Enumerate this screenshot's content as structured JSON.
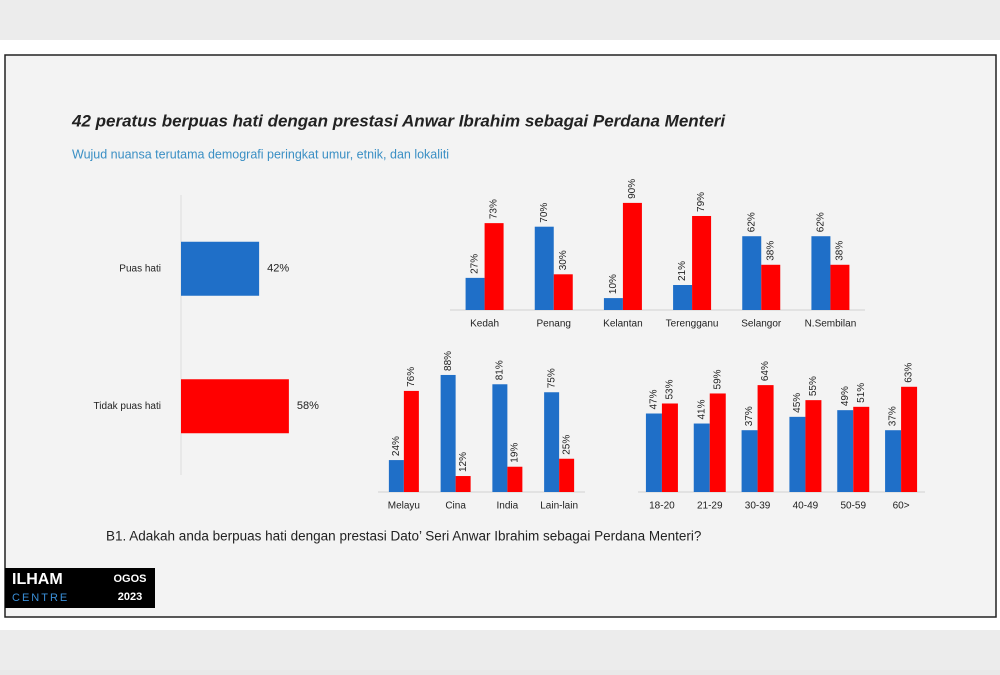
{
  "header": {
    "title": "42 peratus berpuas hati dengan prestasi Anwar Ibrahim sebagai Perdana Menteri",
    "subtitle": "Wujud nuansa terutama demografi peringkat umur, etnik, dan lokaliti"
  },
  "question": "B1. Adakah anda berpuas hati dengan prestasi Dato’ Seri Anwar Ibrahim sebagai Perdana Menteri?",
  "logo": {
    "name": "ILHAM",
    "sub": "CENTRE",
    "month": "OGOS",
    "year": "2023"
  },
  "chart_data": [
    {
      "type": "barh",
      "categories": [
        "Puas hati",
        "Tidak puas hati"
      ],
      "values": [
        42,
        58
      ],
      "value_labels": [
        "42%",
        "58%"
      ],
      "colors": [
        "#1f6fc8",
        "#ff0000"
      ]
    },
    {
      "type": "bar",
      "categories": [
        "Kedah",
        "Penang",
        "Kelantan",
        "Terengganu",
        "Selangor",
        "N.Sembilan"
      ],
      "series": [
        {
          "color": "#1f6fc8",
          "values": [
            27,
            70,
            10,
            21,
            62,
            62
          ],
          "value_labels": [
            "27%",
            "70%",
            "10%",
            "21%",
            "62%",
            "62%"
          ]
        },
        {
          "color": "#ff0000",
          "values": [
            73,
            30,
            90,
            79,
            38,
            38
          ],
          "value_labels": [
            "73%",
            "30%",
            "90%",
            "79%",
            "38%",
            "38%"
          ]
        }
      ]
    },
    {
      "type": "bar",
      "categories": [
        "Melayu",
        "Cina",
        "India",
        "Lain-lain"
      ],
      "series": [
        {
          "color": "#1f6fc8",
          "values": [
            24,
            88,
            81,
            75
          ],
          "value_labels": [
            "24%",
            "88%",
            "81%",
            "75%"
          ]
        },
        {
          "color": "#ff0000",
          "values": [
            76,
            12,
            19,
            25
          ],
          "value_labels": [
            "76%",
            "12%",
            "19%",
            "25%"
          ]
        }
      ]
    },
    {
      "type": "bar",
      "categories": [
        "18-20",
        "21-29",
        "30-39",
        "40-49",
        "50-59",
        "60>"
      ],
      "series": [
        {
          "color": "#1f6fc8",
          "values": [
            47,
            41,
            37,
            45,
            49,
            37
          ],
          "value_labels": [
            "47%",
            "41%",
            "37%",
            "45%",
            "49%",
            "37%"
          ]
        },
        {
          "color": "#ff0000",
          "values": [
            53,
            59,
            64,
            55,
            51,
            63
          ],
          "value_labels": [
            "53%",
            "59%",
            "64%",
            "55%",
            "51%",
            "63%"
          ]
        }
      ]
    }
  ]
}
